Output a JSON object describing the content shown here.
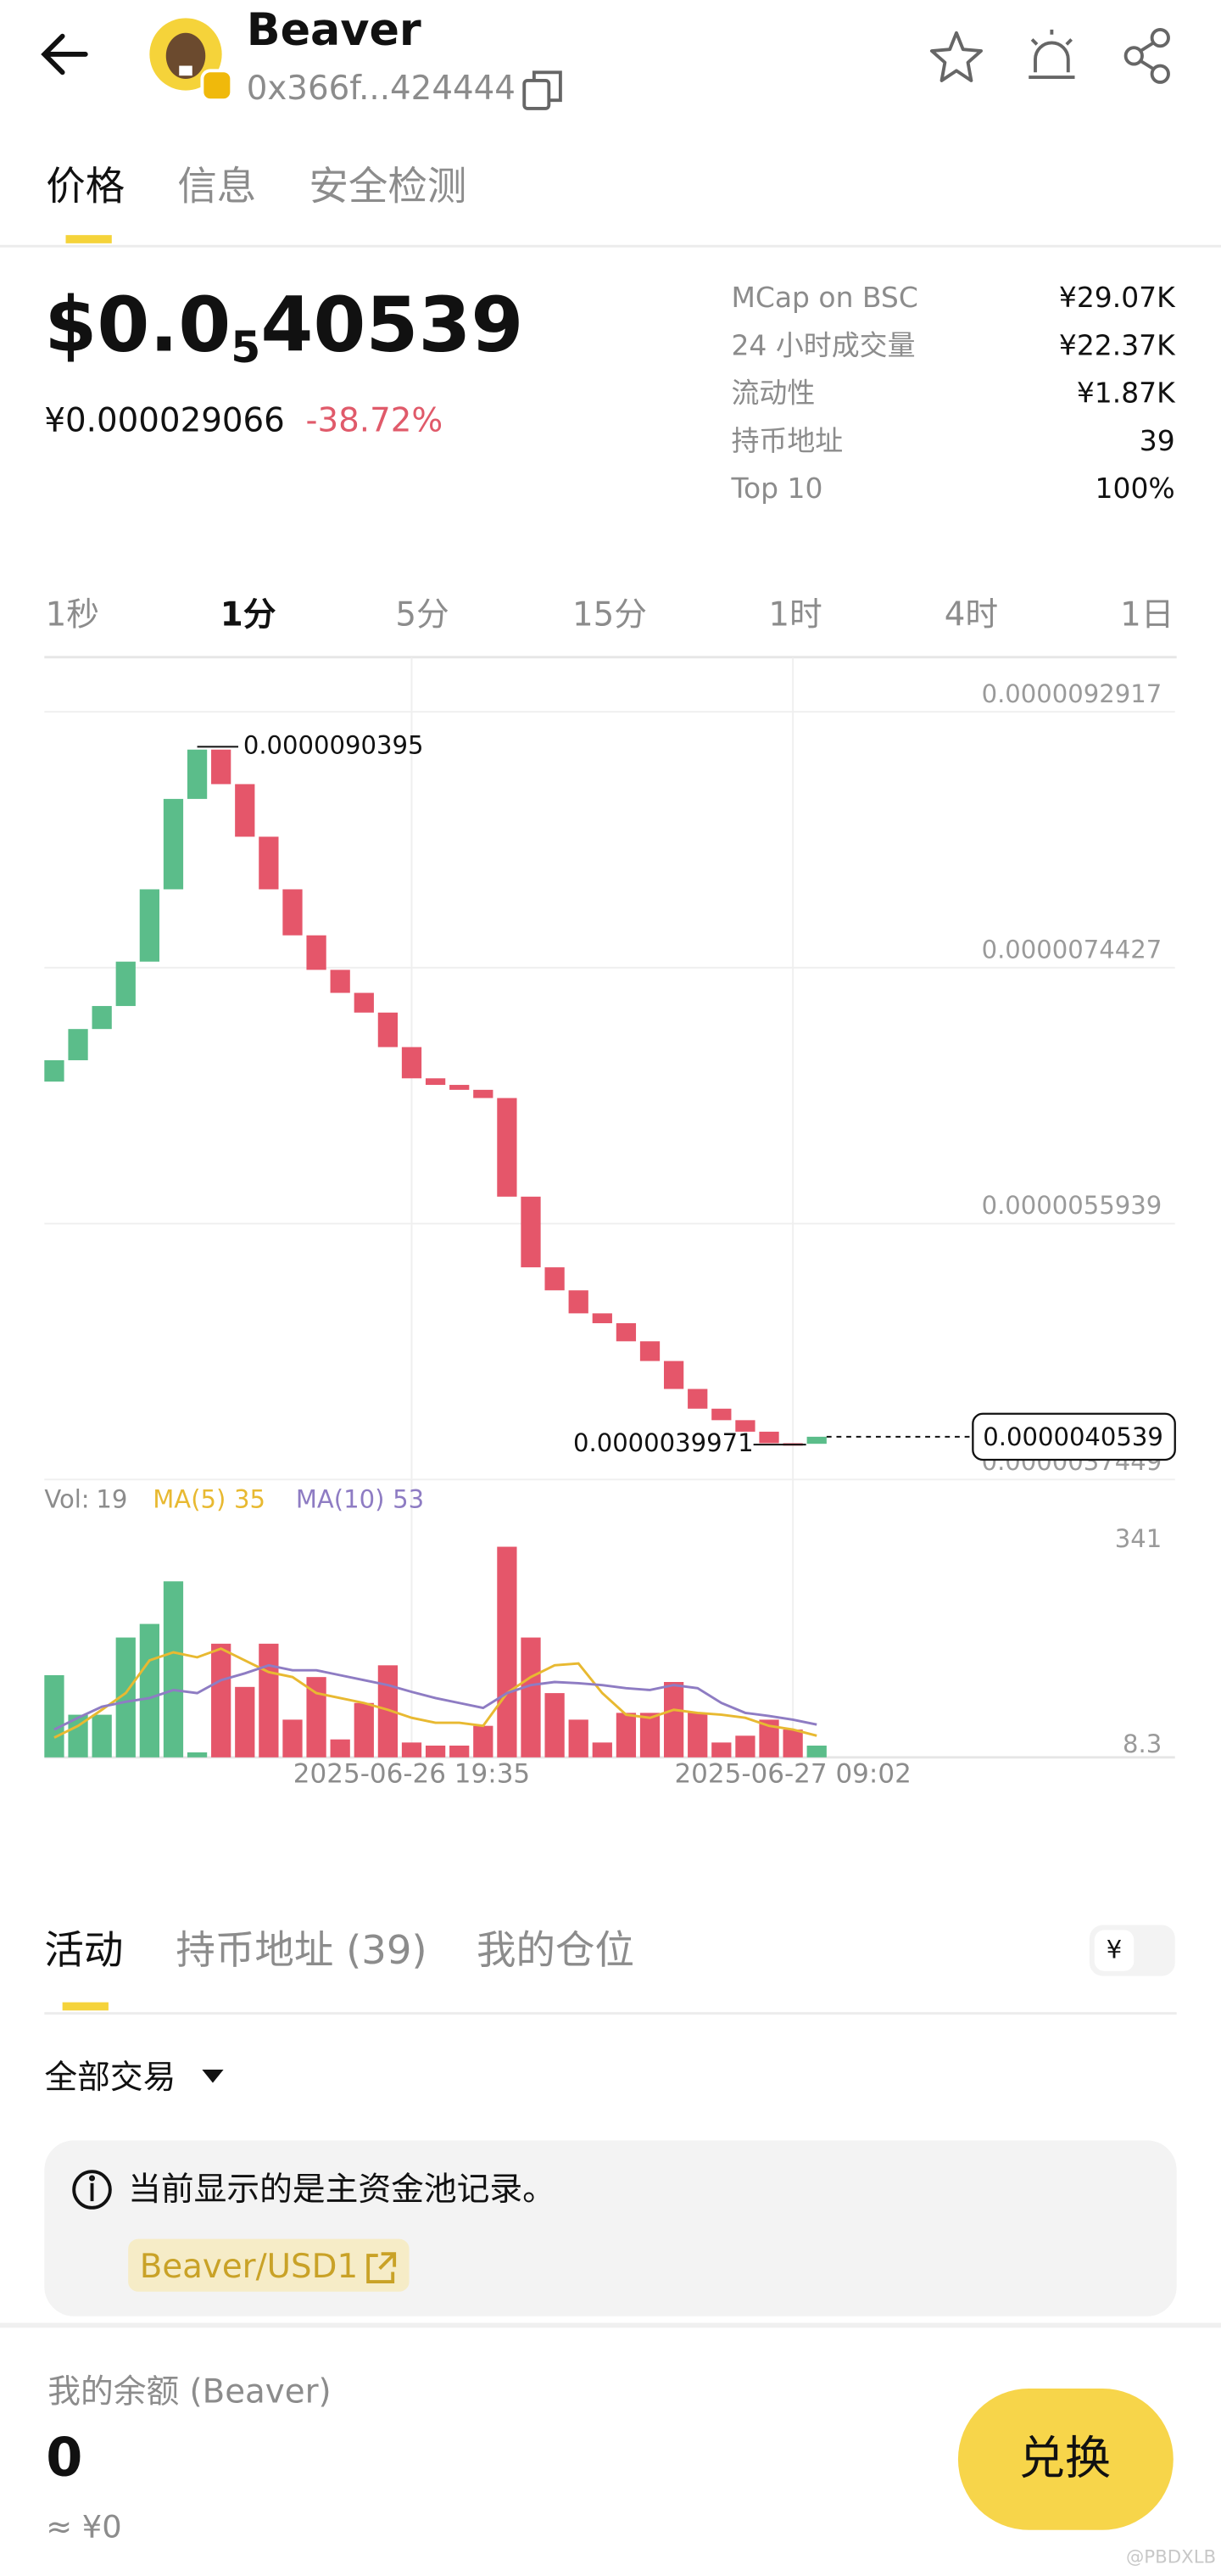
{
  "header": {
    "title": "Beaver",
    "address": "0x366f...424444"
  },
  "tabs": [
    "价格",
    "信息",
    "安全检测"
  ],
  "price": {
    "prefix": "$0.0",
    "zero_count": "5",
    "digits": "40539",
    "cny": "¥0.000029066",
    "change": "-38.72%"
  },
  "stats": [
    {
      "label": "MCap on BSC",
      "value": "¥29.07K"
    },
    {
      "label": "24 小时成交量",
      "value": "¥22.37K"
    },
    {
      "label": "流动性",
      "value": "¥1.87K"
    },
    {
      "label": "持币地址",
      "value": "39"
    },
    {
      "label": "Top 10",
      "value": "100%"
    }
  ],
  "intervals": [
    "1秒",
    "1分",
    "5分",
    "15分",
    "1时",
    "4时",
    "1日"
  ],
  "chart_data": {
    "type": "candlestick",
    "categories": [
      null,
      null,
      null,
      null,
      null,
      null,
      null,
      null,
      null,
      null,
      null,
      null,
      null,
      null,
      null,
      "2025-06-26 19:35",
      null,
      null,
      null,
      null,
      null,
      null,
      null,
      null,
      null,
      null,
      null,
      null,
      null,
      null,
      null,
      "2025-06-27 09:02",
      null
    ],
    "open": [
      6.6198e-06,
      6.7742e-06,
      6.9998e-06,
      7.166e-06,
      7.4867e-06,
      8.0092e-06,
      8.6623e-06,
      9.0186e-06,
      8.7692e-06,
      8.3892e-06,
      8.0092e-06,
      7.6767e-06,
      7.4273e-06,
      7.261e-06,
      7.1186e-06,
      6.8692e-06,
      6.6436e-06,
      6.5961e-06,
      6.5605e-06,
      6.5011e-06,
      5.7886e-06,
      5.278e-06,
      5.1117e-06,
      4.9455e-06,
      4.8742e-06,
      4.7436e-06,
      4.6011e-06,
      4.3992e-06,
      4.2567e-06,
      4.1736e-06,
      4.0905e-06,
      4.0074e-06,
      4.003e-06
    ],
    "close": [
      6.7742e-06,
      6.9998e-06,
      7.166e-06,
      7.4867e-06,
      8.0092e-06,
      8.6623e-06,
      9.0186e-06,
      8.7692e-06,
      8.3892e-06,
      8.0092e-06,
      7.6767e-06,
      7.4273e-06,
      7.261e-06,
      7.1186e-06,
      6.8692e-06,
      6.6436e-06,
      6.5961e-06,
      6.5605e-06,
      6.5011e-06,
      5.7886e-06,
      5.278e-06,
      5.1117e-06,
      4.9455e-06,
      4.8742e-06,
      4.7436e-06,
      4.6011e-06,
      4.3992e-06,
      4.2567e-06,
      4.1736e-06,
      4.0905e-06,
      4.0074e-06,
      4.003e-06,
      4.0539e-06
    ],
    "up_color": "#5bbd8a",
    "down_color": "#e5566a",
    "ylim": [
      3.7449e-06,
      9.6836e-06
    ],
    "yticks": [
      {
        "value": 9.2917e-06,
        "label": "0.0000092917"
      },
      {
        "value": 7.4427e-06,
        "label": "0.0000074427"
      },
      {
        "value": 5.5939e-06,
        "label": "0.0000055939"
      },
      {
        "value": 3.7449e-06,
        "label": "0.0000037449"
      }
    ],
    "grid": true,
    "high": {
      "value": 9.0395e-06,
      "label": "0.0000090395"
    },
    "low": {
      "value": 3.9971e-06,
      "label": "0.0000039971"
    },
    "last_price": {
      "value": 4.0539e-06,
      "label": "0.0000040539"
    },
    "volume": {
      "label": "Vol:",
      "values": [
        133,
        69,
        69,
        194,
        216,
        285,
        8,
        184,
        114,
        184,
        61,
        130,
        29,
        88,
        149,
        24,
        19,
        19,
        51,
        341,
        194,
        104,
        61,
        24,
        72,
        72,
        122,
        72,
        24,
        35,
        61,
        45,
        19
      ],
      "ylim": [
        0,
        370
      ],
      "yticks": [
        341,
        8.3
      ],
      "ma": [
        {
          "name": "MA(5)",
          "color": "#e8b931",
          "values": [
            32,
            51,
            77,
            104,
            157,
            170,
            162,
            176,
            157,
            138,
            130,
            104,
            96,
            88,
            77,
            64,
            56,
            56,
            51,
            104,
            130,
            149,
            152,
            104,
            69,
            64,
            77,
            72,
            69,
            64,
            51,
            45,
            35
          ]
        },
        {
          "name": "MA(10)",
          "color": "#8e7cc3",
          "values": [
            45,
            64,
            82,
            90,
            96,
            109,
            104,
            125,
            136,
            149,
            141,
            141,
            133,
            125,
            117,
            106,
            96,
            88,
            80,
            104,
            117,
            122,
            120,
            117,
            112,
            109,
            117,
            112,
            88,
            72,
            67,
            61,
            53
          ]
        }
      ]
    }
  },
  "activity": {
    "tabs": [
      "活动",
      "持币地址 (39)",
      "我的仓位"
    ],
    "currency": "¥",
    "filter": "全部交易",
    "notice": "当前显示的是主资金池记录。",
    "link": "Beaver/USD1"
  },
  "balance": {
    "label": "我的余额 (Beaver)",
    "amount": "0",
    "approx": "≈ ¥0"
  },
  "button": "兑换",
  "watermark": "@PBDXLB"
}
